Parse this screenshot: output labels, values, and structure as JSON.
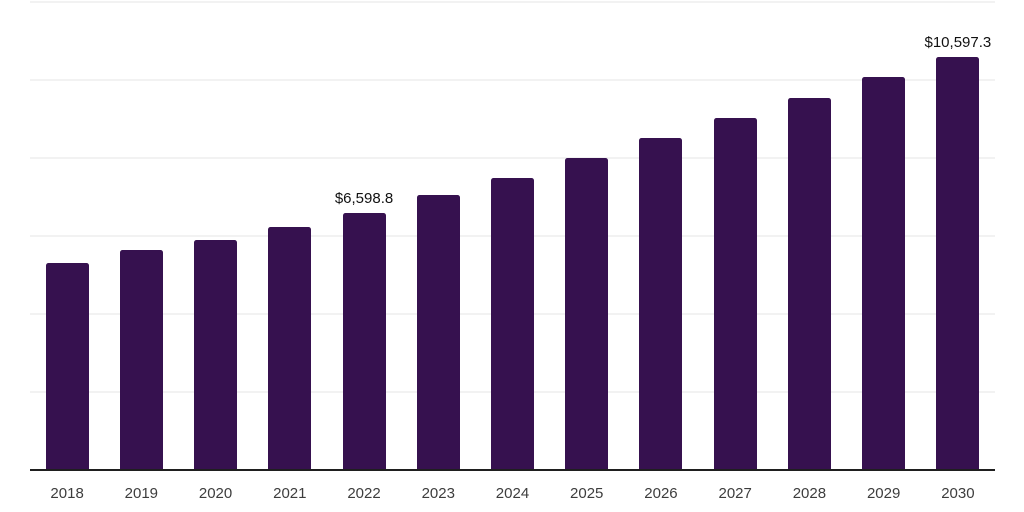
{
  "chart": {
    "bar_color": "#36114F",
    "grid_color": "#f2f2f2",
    "axis_color": "#1f1f1f",
    "tick_label_color": "#3d3d3d",
    "data_label_color": "#111111"
  },
  "chart_data": {
    "type": "bar",
    "title": "",
    "xlabel": "",
    "ylabel": "",
    "categories": [
      "2018",
      "2019",
      "2020",
      "2021",
      "2022",
      "2023",
      "2024",
      "2025",
      "2026",
      "2027",
      "2028",
      "2029",
      "2030"
    ],
    "values": [
      5310,
      5640,
      5895,
      6220,
      6598.8,
      7050,
      7485,
      8000,
      8510,
      9025,
      9540,
      10075,
      10597.3
    ],
    "data_labels": [
      "",
      "",
      "",
      "",
      "$6,598.8",
      "",
      "",
      "",
      "",
      "",
      "",
      "",
      "$10,597.3"
    ],
    "ylim": [
      0,
      12000
    ],
    "gridline_values": [
      2000,
      4000,
      6000,
      8000,
      10000,
      12000
    ],
    "grid": "horizontal",
    "legend_position": "none"
  }
}
